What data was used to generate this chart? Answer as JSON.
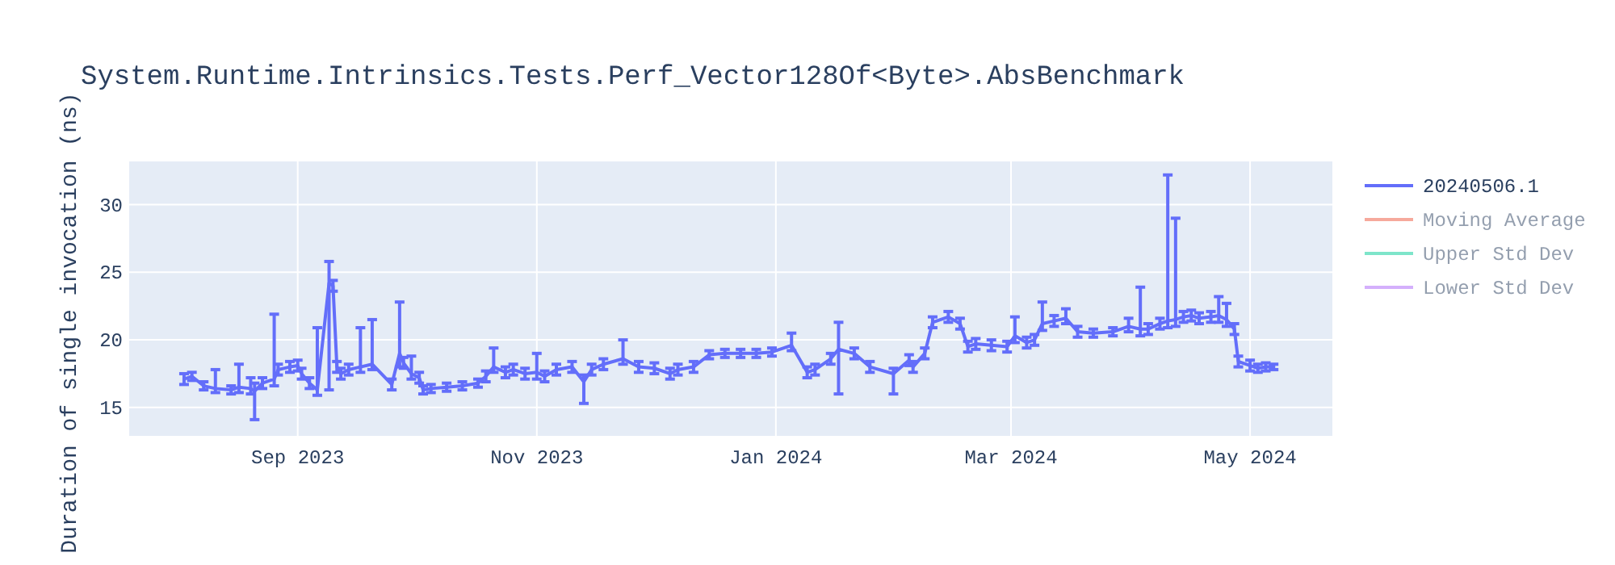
{
  "chart_data": {
    "type": "line",
    "title": "System.Runtime.Intrinsics.Tests.Perf_Vector128Of<Byte>.AbsBenchmark",
    "ylabel": "Duration of single invocation (ns)",
    "x": [
      "2023-08-03",
      "2023-08-05",
      "2023-08-08",
      "2023-08-11",
      "2023-08-15",
      "2023-08-17",
      "2023-08-20",
      "2023-08-21",
      "2023-08-23",
      "2023-08-26",
      "2023-08-27",
      "2023-08-30",
      "2023-09-01",
      "2023-09-02",
      "2023-09-04",
      "2023-09-06",
      "2023-09-09",
      "2023-09-10",
      "2023-09-11",
      "2023-09-12",
      "2023-09-14",
      "2023-09-17",
      "2023-09-20",
      "2023-09-25",
      "2023-09-27",
      "2023-09-28",
      "2023-09-30",
      "2023-10-02",
      "2023-10-03",
      "2023-10-05",
      "2023-10-09",
      "2023-10-13",
      "2023-10-17",
      "2023-10-19",
      "2023-10-21",
      "2023-10-24",
      "2023-10-26",
      "2023-10-29",
      "2023-11-01",
      "2023-11-03",
      "2023-11-06",
      "2023-11-10",
      "2023-11-13",
      "2023-11-15",
      "2023-11-18",
      "2023-11-23",
      "2023-11-27",
      "2023-12-01",
      "2023-12-05",
      "2023-12-07",
      "2023-12-11",
      "2023-12-15",
      "2023-12-19",
      "2023-12-23",
      "2023-12-27",
      "2023-12-31",
      "2024-01-05",
      "2024-01-09",
      "2024-01-11",
      "2024-01-15",
      "2024-01-17",
      "2024-01-21",
      "2024-01-25",
      "2024-01-31",
      "2024-02-04",
      "2024-02-05",
      "2024-02-08",
      "2024-02-10",
      "2024-02-14",
      "2024-02-17",
      "2024-02-19",
      "2024-02-21",
      "2024-02-25",
      "2024-02-29",
      "2024-03-02",
      "2024-03-05",
      "2024-03-07",
      "2024-03-09",
      "2024-03-12",
      "2024-03-15",
      "2024-03-18",
      "2024-03-22",
      "2024-03-27",
      "2024-03-31",
      "2024-04-03",
      "2024-04-05",
      "2024-04-08",
      "2024-04-10",
      "2024-04-12",
      "2024-04-14",
      "2024-04-16",
      "2024-04-18",
      "2024-04-21",
      "2024-04-23",
      "2024-04-25",
      "2024-04-27",
      "2024-04-28",
      "2024-05-01",
      "2024-05-03",
      "2024-05-05",
      "2024-05-07"
    ],
    "series": [
      {
        "name": "20240506.1",
        "color": "#636efa",
        "values": [
          17.1,
          17.3,
          16.6,
          16.4,
          16.3,
          16.5,
          16.4,
          16.2,
          16.8,
          17.1,
          17.8,
          18.0,
          18.1,
          17.5,
          16.8,
          16.3,
          24.2,
          24.0,
          18.0,
          17.5,
          17.8,
          18.0,
          18.2,
          16.7,
          19.0,
          18.3,
          17.5,
          17.2,
          16.3,
          16.4,
          16.5,
          16.6,
          16.8,
          17.3,
          18.0,
          17.6,
          17.8,
          17.5,
          17.6,
          17.3,
          17.8,
          18.0,
          16.9,
          17.8,
          18.2,
          18.6,
          18.0,
          17.9,
          17.5,
          17.8,
          18.0,
          18.9,
          19.0,
          19.0,
          19.0,
          19.1,
          19.6,
          17.6,
          17.8,
          18.6,
          19.3,
          19.0,
          18.0,
          17.5,
          18.5,
          18.0,
          19.0,
          21.3,
          21.7,
          21.2,
          19.5,
          19.7,
          19.6,
          19.5,
          20.3,
          19.8,
          20.0,
          21.2,
          21.4,
          21.6,
          20.6,
          20.5,
          20.6,
          21.0,
          20.8,
          20.8,
          21.2,
          21.4,
          21.5,
          21.7,
          21.8,
          21.6,
          21.7,
          21.8,
          21.5,
          20.8,
          18.4,
          18.1,
          17.9,
          18.0,
          18.0
        ],
        "errors": [
          0.4,
          0.3,
          0.3,
          [
            16.1,
            17.8
          ],
          0.3,
          [
            16.1,
            18.2
          ],
          [
            16.0,
            17.2
          ],
          [
            14.1,
            16.8
          ],
          0.4,
          [
            16.6,
            21.9
          ],
          0.4,
          0.4,
          0.4,
          0.4,
          0.4,
          [
            15.9,
            20.9
          ],
          [
            16.3,
            25.8
          ],
          0.4,
          0.4,
          0.4,
          0.4,
          [
            17.6,
            20.9
          ],
          [
            17.8,
            21.5
          ],
          0.4,
          [
            18.0,
            22.8
          ],
          0.4,
          [
            17.1,
            18.8
          ],
          0.4,
          0.3,
          0.3,
          0.3,
          0.3,
          0.3,
          0.4,
          [
            17.6,
            19.4
          ],
          0.4,
          0.4,
          0.4,
          [
            17.1,
            19.0
          ],
          0.4,
          0.4,
          0.4,
          [
            15.3,
            17.4
          ],
          0.4,
          0.4,
          [
            18.2,
            20.0
          ],
          0.4,
          0.4,
          0.4,
          0.4,
          0.4,
          0.3,
          0.3,
          0.3,
          0.3,
          0.3,
          [
            19.2,
            20.5
          ],
          0.4,
          0.4,
          0.4,
          [
            16.0,
            21.3
          ],
          0.4,
          0.4,
          [
            16.0,
            17.9
          ],
          0.4,
          0.4,
          0.4,
          0.4,
          0.4,
          0.4,
          0.4,
          0.4,
          0.4,
          0.4,
          [
            19.8,
            21.7
          ],
          0.4,
          0.4,
          [
            20.7,
            22.8
          ],
          0.4,
          [
            21.2,
            22.3
          ],
          0.4,
          0.3,
          0.3,
          [
            20.6,
            21.6
          ],
          [
            20.3,
            23.9
          ],
          0.4,
          0.4,
          [
            20.9,
            32.2
          ],
          [
            21.0,
            29.0
          ],
          0.4,
          0.4,
          0.4,
          0.4,
          [
            21.3,
            23.2
          ],
          [
            21.0,
            22.7
          ],
          0.4,
          0.4,
          0.4,
          0.3,
          0.3,
          0.2
        ]
      },
      {
        "name": "Moving Average",
        "color": "#ef553b",
        "values": [
          null,
          null,
          null,
          null,
          null,
          null,
          null,
          null,
          null,
          null,
          null,
          null,
          null,
          null,
          null,
          null,
          null,
          null,
          null,
          null,
          null,
          null,
          null,
          null,
          null,
          null,
          null,
          null,
          null,
          null,
          null,
          null,
          null,
          null,
          null,
          null,
          null,
          null,
          null,
          null,
          null,
          null,
          null,
          null,
          null,
          null,
          null,
          null,
          null,
          null,
          null,
          null,
          null,
          null,
          null,
          null,
          null,
          null,
          null,
          null,
          null,
          null,
          null,
          null,
          null,
          null,
          null,
          null,
          null,
          null,
          null,
          null,
          null,
          null,
          null,
          null,
          null,
          null,
          null,
          null,
          null,
          null,
          null,
          null,
          null,
          null,
          null,
          null,
          null,
          null,
          null,
          null,
          null,
          null,
          null,
          null,
          null,
          null,
          null,
          null,
          null
        ]
      },
      {
        "name": "Upper Std Dev",
        "color": "#00cc96",
        "values": [
          null,
          null,
          null,
          null,
          null,
          null,
          null,
          null,
          null,
          null,
          null,
          null,
          null,
          null,
          null,
          null,
          null,
          null,
          null,
          null,
          null,
          null,
          null,
          null,
          null,
          null,
          null,
          null,
          null,
          null,
          null,
          null,
          null,
          null,
          null,
          null,
          null,
          null,
          null,
          null,
          null,
          null,
          null,
          null,
          null,
          null,
          null,
          null,
          null,
          null,
          null,
          null,
          null,
          null,
          null,
          null,
          null,
          null,
          null,
          null,
          null,
          null,
          null,
          null,
          null,
          null,
          null,
          null,
          null,
          null,
          null,
          null,
          null,
          null,
          null,
          null,
          null,
          null,
          null,
          null,
          null,
          null,
          null,
          null,
          null,
          null,
          null,
          null,
          null,
          null,
          null,
          null,
          null,
          null,
          null,
          null,
          null,
          null,
          null,
          null,
          null
        ]
      },
      {
        "name": "Lower Std Dev",
        "color": "#ab63fa",
        "values": [
          null,
          null,
          null,
          null,
          null,
          null,
          null,
          null,
          null,
          null,
          null,
          null,
          null,
          null,
          null,
          null,
          null,
          null,
          null,
          null,
          null,
          null,
          null,
          null,
          null,
          null,
          null,
          null,
          null,
          null,
          null,
          null,
          null,
          null,
          null,
          null,
          null,
          null,
          null,
          null,
          null,
          null,
          null,
          null,
          null,
          null,
          null,
          null,
          null,
          null,
          null,
          null,
          null,
          null,
          null,
          null,
          null,
          null,
          null,
          null,
          null,
          null,
          null,
          null,
          null,
          null,
          null,
          null,
          null,
          null,
          null,
          null,
          null,
          null,
          null,
          null,
          null,
          null,
          null,
          null,
          null,
          null,
          null,
          null,
          null,
          null,
          null,
          null,
          null,
          null,
          null,
          null,
          null,
          null,
          null,
          null,
          null,
          null,
          null,
          null,
          null
        ]
      }
    ],
    "xlim": [
      "2023-07-20",
      "2024-05-22"
    ],
    "xticks": [
      {
        "value": "2023-09-01",
        "label": "Sep 2023"
      },
      {
        "value": "2023-11-01",
        "label": "Nov 2023"
      },
      {
        "value": "2024-01-01",
        "label": "Jan 2024"
      },
      {
        "value": "2024-03-01",
        "label": "Mar 2024"
      },
      {
        "value": "2024-05-01",
        "label": "May 2024"
      }
    ],
    "ylim": [
      12.9,
      33.2
    ],
    "yticks": [
      15,
      20,
      25,
      30
    ],
    "grid": true,
    "legend": "right",
    "marker": "none",
    "line_style": "solid"
  }
}
